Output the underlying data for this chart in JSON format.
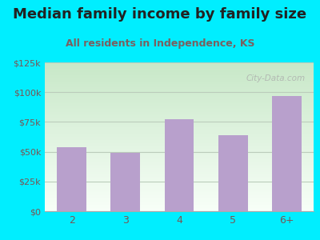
{
  "title": "Median family income by family size",
  "subtitle": "All residents in Independence, KS",
  "categories": [
    "2",
    "3",
    "4",
    "5",
    "6+"
  ],
  "values": [
    54000,
    49000,
    77000,
    64000,
    97000
  ],
  "bar_color": "#b8a0cc",
  "background_outer": "#00eeff",
  "background_inner_top": "#c8e8c8",
  "background_inner_bottom": "#f4faf4",
  "title_color": "#222222",
  "subtitle_color": "#7a6060",
  "tick_color": "#7a5555",
  "axis_label_color": "#7a5555",
  "grid_color": "#bbccbb",
  "ylim": [
    0,
    125000
  ],
  "yticks": [
    0,
    25000,
    50000,
    75000,
    100000,
    125000
  ],
  "ytick_labels": [
    "$0",
    "$25k",
    "$50k",
    "$75k",
    "$100k",
    "$125k"
  ],
  "watermark": "City-Data.com",
  "title_fontsize": 13,
  "subtitle_fontsize": 9
}
